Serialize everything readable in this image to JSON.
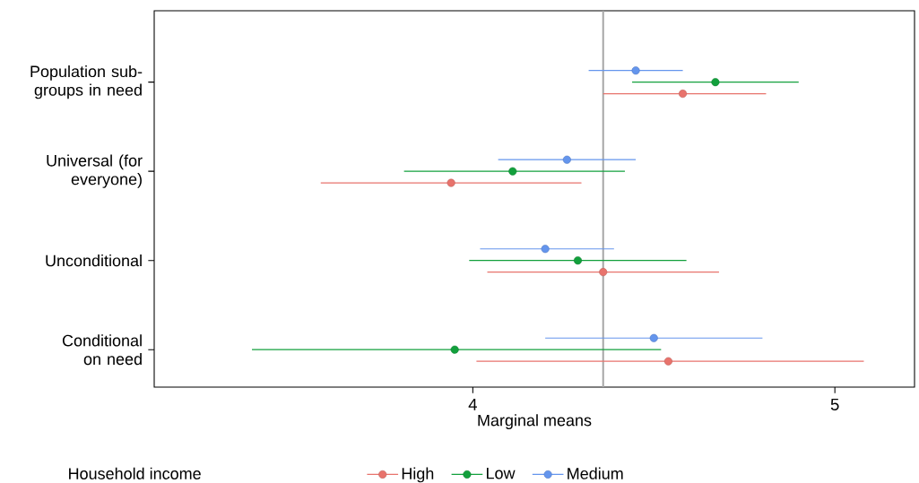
{
  "chart_data": {
    "type": "scatter",
    "orientation": "horizontal",
    "xlabel": "Marginal means",
    "legend_title": "Household income",
    "categories": [
      "Population sub-groups in need",
      "Universal (for everyone)",
      "Unconditional",
      "Conditional on need"
    ],
    "series": [
      {
        "name": "High",
        "color": "#e8736c",
        "values": [
          4.58,
          3.94,
          4.36,
          4.54
        ],
        "errors": [
          [
            4.36,
            4.81
          ],
          [
            3.58,
            4.3
          ],
          [
            4.04,
            4.68
          ],
          [
            4.01,
            5.08
          ]
        ]
      },
      {
        "name": "Low",
        "color": "#12a03c",
        "values": [
          4.67,
          4.11,
          4.29,
          3.95
        ],
        "errors": [
          [
            4.44,
            4.9
          ],
          [
            3.81,
            4.42
          ],
          [
            3.99,
            4.59
          ],
          [
            3.39,
            4.52
          ]
        ]
      },
      {
        "name": "Medium",
        "color": "#6495ed",
        "values": [
          4.45,
          4.26,
          4.2,
          4.5
        ],
        "errors": [
          [
            4.32,
            4.58
          ],
          [
            4.07,
            4.45
          ],
          [
            4.02,
            4.39
          ],
          [
            4.2,
            4.8
          ]
        ]
      }
    ],
    "xlim": [
      3.12,
      5.22
    ],
    "xticks": [
      4,
      5
    ],
    "ref_lines": [
      {
        "axis": "x",
        "value": 4.36,
        "color": "#a6a6a6"
      }
    ],
    "grid": false,
    "legend": "bottom",
    "marker": "circle"
  }
}
